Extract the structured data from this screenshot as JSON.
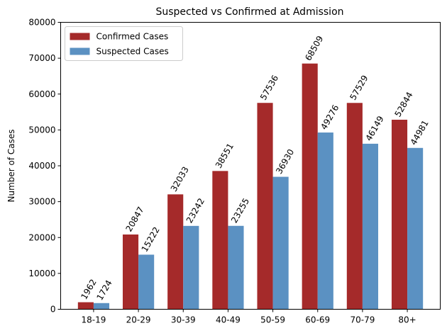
{
  "chart_data": {
    "type": "bar",
    "title": "Suspected vs Confirmed at Admission",
    "xlabel": "",
    "ylabel": "Number of Cases",
    "categories": [
      "18-19",
      "20-29",
      "30-39",
      "40-49",
      "50-59",
      "60-69",
      "70-79",
      "80+"
    ],
    "series": [
      {
        "name": "Confirmed Cases",
        "color": "#a52a2a",
        "values": [
          1962,
          20847,
          32033,
          38551,
          57536,
          68509,
          57529,
          52844
        ]
      },
      {
        "name": "Suspected Cases",
        "color": "#5b91c2",
        "values": [
          1724,
          15222,
          23242,
          23255,
          36930,
          49276,
          46149,
          44981
        ]
      }
    ],
    "ylim": [
      0,
      80000
    ],
    "yticks": [
      0,
      10000,
      20000,
      30000,
      40000,
      50000,
      60000,
      70000,
      80000
    ],
    "grid": false,
    "legend_position": "top-left",
    "data_labels": true
  }
}
